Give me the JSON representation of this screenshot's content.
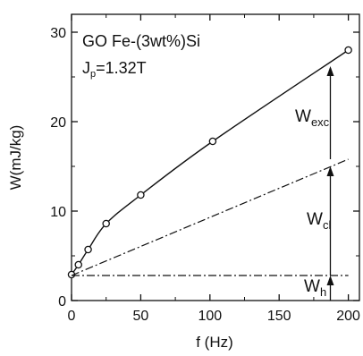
{
  "chart_data": {
    "type": "line",
    "xlabel": "f (Hz)",
    "ylabel": "W(mJ/kg)",
    "xlim": [
      0,
      208
    ],
    "ylim": [
      0,
      32
    ],
    "x_ticks": [
      0,
      50,
      100,
      150,
      200
    ],
    "y_ticks": [
      0,
      10,
      20,
      30
    ],
    "grid": false,
    "annotation_lines": [
      "GO Fe-(3wt%)Si",
      "J_p=1.32T"
    ],
    "annotation_parts": {
      "line1": "GO Fe-(3wt%)Si",
      "j": "J",
      "j_sub": "p",
      "j_value": "=1.32T"
    },
    "series": [
      {
        "style": "solid-with-open-circles",
        "x": [
          0,
          5,
          12,
          25,
          50,
          102,
          200
        ],
        "y": [
          2.9,
          4.0,
          5.7,
          8.6,
          11.8,
          17.8,
          28.0
        ]
      },
      {
        "style": "dash-dot",
        "x": [
          0,
          200
        ],
        "y": [
          2.8,
          15.8
        ]
      },
      {
        "style": "dash-dot",
        "x": [
          0,
          200
        ],
        "y": [
          2.8,
          2.8
        ]
      }
    ],
    "component_labels": [
      {
        "main": "W",
        "sub": "exc",
        "x_at": 187,
        "from": 15.8,
        "to": 26.2
      },
      {
        "main": "W",
        "sub": "cl",
        "x_at": 187,
        "from": 2.8,
        "to": 15.0
      },
      {
        "main": "W",
        "sub": "h",
        "x_at": 187,
        "from": 0.0,
        "to": 2.8
      }
    ]
  }
}
